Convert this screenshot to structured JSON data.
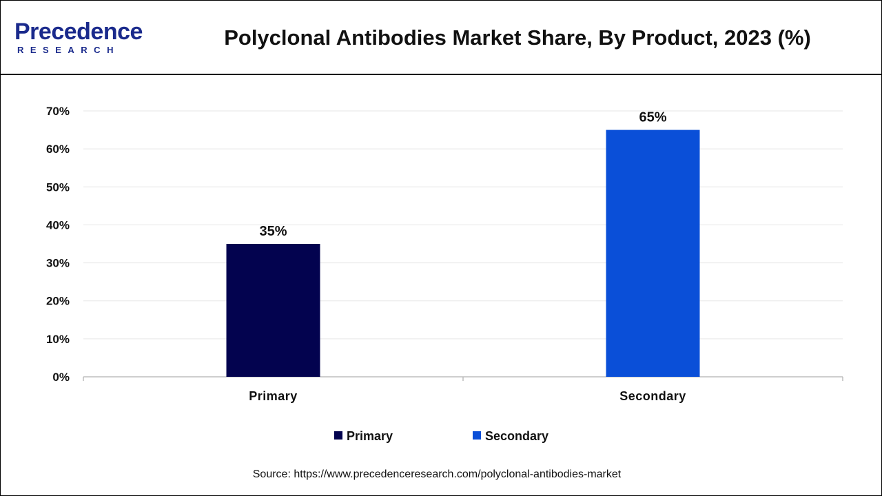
{
  "brand": {
    "name": "Precedence",
    "sub": "RESEARCH"
  },
  "title": "Polyclonal Antibodies Market Share, By Product, 2023 (%)",
  "source": "Source: https://www.precedenceresearch.com/polyclonal-antibodies-market",
  "colors": {
    "primary": "#03034f",
    "secondary": "#0a4fd8",
    "brand": "#1a2a8c"
  },
  "chart_data": {
    "type": "bar",
    "categories": [
      "Primary",
      "Secondary"
    ],
    "values": [
      35,
      65
    ],
    "value_labels": [
      "35%",
      "65%"
    ],
    "ylim": [
      0,
      70
    ],
    "yticks": [
      0,
      10,
      20,
      30,
      40,
      50,
      60,
      70
    ],
    "ytick_labels": [
      "0%",
      "10%",
      "20%",
      "30%",
      "40%",
      "50%",
      "60%",
      "70%"
    ],
    "grid": true,
    "legend": {
      "placement": "bottom",
      "entries": [
        {
          "name": "Primary",
          "color": "#03034f"
        },
        {
          "name": "Secondary",
          "color": "#0a4fd8"
        }
      ]
    },
    "title": "",
    "xlabel": "",
    "ylabel": ""
  }
}
